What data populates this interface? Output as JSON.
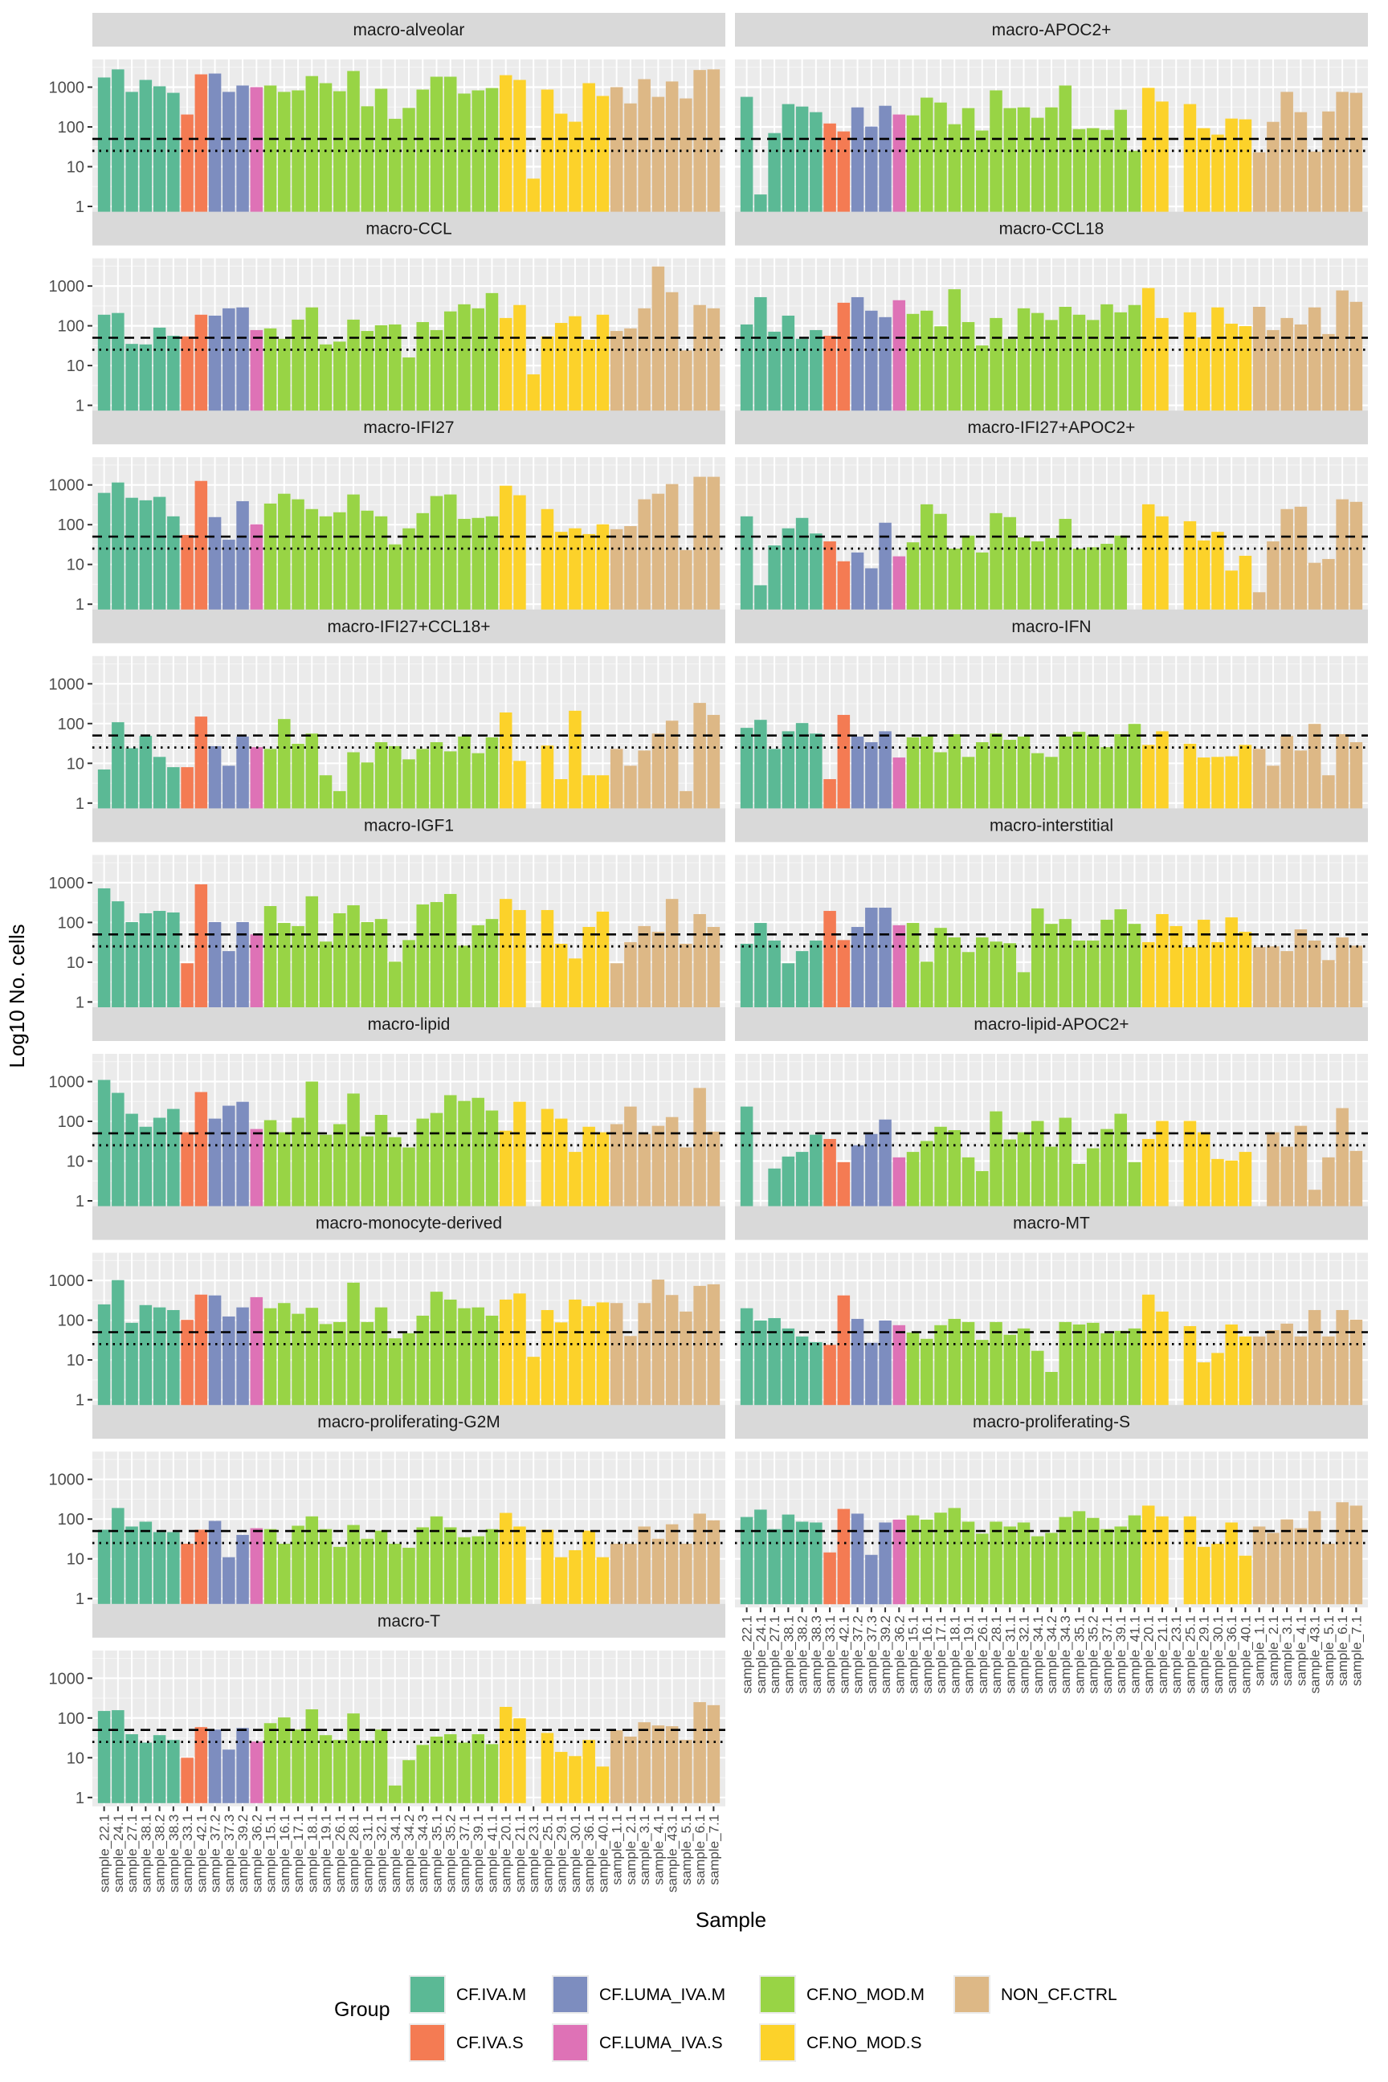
{
  "chart_data": {
    "type": "bar",
    "title": "",
    "xlabel": "Sample",
    "ylabel": "Log10 No. cells",
    "y_scale": "log10",
    "ylim": [
      1,
      3500
    ],
    "yticks": [
      1,
      10,
      100,
      1000
    ],
    "ytick_labels": [
      "1",
      "10",
      "100",
      "1000"
    ],
    "grid": true,
    "reference_lines": [
      {
        "value": 50,
        "style": "dashed"
      },
      {
        "value": 25,
        "style": "dotted"
      }
    ],
    "categories": [
      "sample_22.1",
      "sample_24.1",
      "sample_27.1",
      "sample_38.1",
      "sample_38.2",
      "sample_38.3",
      "sample_33.1",
      "sample_42.1",
      "sample_37.2",
      "sample_37.3",
      "sample_39.2",
      "sample_36.2",
      "sample_15.1",
      "sample_16.1",
      "sample_17.1",
      "sample_18.1",
      "sample_19.1",
      "sample_26.1",
      "sample_28.1",
      "sample_31.1",
      "sample_32.1",
      "sample_34.1",
      "sample_34.2",
      "sample_34.3",
      "sample_35.1",
      "sample_35.2",
      "sample_37.1",
      "sample_39.1",
      "sample_41.1",
      "sample_20.1",
      "sample_21.1",
      "sample_23.1",
      "sample_25.1",
      "sample_29.1",
      "sample_30.1",
      "sample_36.1",
      "sample_40.1",
      "sample_1.1",
      "sample_2.1",
      "sample_3.1",
      "sample_4.1",
      "sample_43.1",
      "sample_5.1",
      "sample_6.1",
      "sample_7.1"
    ],
    "sample_groups": [
      "CF.IVA.M",
      "CF.IVA.M",
      "CF.IVA.M",
      "CF.IVA.M",
      "CF.IVA.M",
      "CF.IVA.M",
      "CF.IVA.S",
      "CF.IVA.S",
      "CF.LUMA_IVA.M",
      "CF.LUMA_IVA.M",
      "CF.LUMA_IVA.M",
      "CF.LUMA_IVA.S",
      "CF.NO_MOD.M",
      "CF.NO_MOD.M",
      "CF.NO_MOD.M",
      "CF.NO_MOD.M",
      "CF.NO_MOD.M",
      "CF.NO_MOD.M",
      "CF.NO_MOD.M",
      "CF.NO_MOD.M",
      "CF.NO_MOD.M",
      "CF.NO_MOD.M",
      "CF.NO_MOD.M",
      "CF.NO_MOD.M",
      "CF.NO_MOD.M",
      "CF.NO_MOD.M",
      "CF.NO_MOD.M",
      "CF.NO_MOD.M",
      "CF.NO_MOD.M",
      "CF.NO_MOD.S",
      "CF.NO_MOD.S",
      "CF.NO_MOD.S",
      "CF.NO_MOD.S",
      "CF.NO_MOD.S",
      "CF.NO_MOD.S",
      "CF.NO_MOD.S",
      "CF.NO_MOD.S",
      "NON_CF.CTRL",
      "NON_CF.CTRL",
      "NON_CF.CTRL",
      "NON_CF.CTRL",
      "NON_CF.CTRL",
      "NON_CF.CTRL",
      "NON_CF.CTRL",
      "NON_CF.CTRL"
    ],
    "legend": {
      "title": "Group",
      "position": "bottom",
      "entries": [
        {
          "label": "CF.IVA.M",
          "color": "#5BB995"
        },
        {
          "label": "CF.IVA.S",
          "color": "#F47B53"
        },
        {
          "label": "CF.LUMA_IVA.M",
          "color": "#7D8DBF"
        },
        {
          "label": "CF.LUMA_IVA.S",
          "color": "#DE72B6"
        },
        {
          "label": "CF.NO_MOD.M",
          "color": "#98D445"
        },
        {
          "label": "CF.NO_MOD.S",
          "color": "#FCD22A"
        },
        {
          "label": "NON_CF.CTRL",
          "color": "#DDB886"
        }
      ]
    },
    "panels": [
      {
        "name": "macro-alveolar",
        "values": [
          1750,
          2800,
          760,
          1520,
          1050,
          720,
          205,
          2100,
          2200,
          760,
          1100,
          1000,
          1100,
          760,
          830,
          1900,
          1260,
          790,
          2550,
          330,
          910,
          160,
          300,
          870,
          1830,
          1830,
          690,
          830,
          950,
          2000,
          1520,
          5,
          870,
          215,
          135,
          1260,
          600,
          1000,
          390,
          1590,
          570,
          1390,
          520,
          2700,
          2800
        ]
      },
      {
        "name": "macro-APOC2+",
        "values": [
          570,
          2,
          70,
          375,
          325,
          235,
          122,
          77,
          310,
          102,
          340,
          205,
          195,
          545,
          410,
          117,
          297,
          81,
          830,
          297,
          310,
          170,
          310,
          1100,
          88,
          93,
          84,
          270,
          25,
          960,
          435,
          null,
          375,
          93,
          64,
          162,
          155,
          23,
          134,
          760,
          235,
          24,
          245,
          760,
          720
        ]
      },
      {
        "name": "macro-CCL",
        "values": [
          190,
          210,
          35,
          34,
          90,
          56,
          54,
          190,
          180,
          275,
          290,
          78,
          86,
          47,
          143,
          290,
          34,
          40,
          143,
          74,
          103,
          108,
          16,
          124,
          78,
          230,
          347,
          275,
          665,
          157,
          333,
          6,
          54,
          118,
          174,
          45,
          190,
          74,
          86,
          275,
          3100,
          700,
          24,
          333,
          275
        ]
      },
      {
        "name": "macro-CCL18",
        "values": [
          108,
          525,
          71,
          180,
          47,
          78,
          56,
          380,
          525,
          240,
          165,
          440,
          199,
          240,
          97,
          830,
          124,
          32,
          157,
          47,
          275,
          210,
          140,
          300,
          190,
          140,
          347,
          218,
          333,
          890,
          157,
          null,
          218,
          51,
          290,
          113,
          98,
          300,
          78,
          157,
          108,
          290,
          62,
          775,
          400
        ]
      },
      {
        "name": "macro-IFI27",
        "values": [
          630,
          1150,
          475,
          410,
          500,
          162,
          55,
          1260,
          155,
          42,
          390,
          102,
          340,
          600,
          435,
          247,
          162,
          205,
          575,
          225,
          162,
          32,
          81,
          195,
          525,
          575,
          140,
          148,
          162,
          955,
          550,
          null,
          247,
          66,
          81,
          58,
          102,
          77,
          92,
          435,
          600,
          1050,
          23,
          1600,
          1600
        ]
      },
      {
        "name": "macro-IFI27+APOC2+",
        "values": [
          162,
          3,
          30,
          81,
          148,
          60,
          38,
          12,
          20,
          8,
          112,
          16,
          36,
          325,
          187,
          25,
          53,
          20,
          195,
          155,
          48,
          38,
          46,
          140,
          25,
          27,
          33,
          53,
          null,
          325,
          162,
          null,
          122,
          40,
          66,
          7,
          16.5,
          2,
          38,
          247,
          283,
          11,
          13.7,
          435,
          375
        ]
      },
      {
        "name": "macro-IFI27+CCL18+",
        "values": [
          7,
          108,
          24,
          49,
          14.5,
          8,
          8,
          150,
          27,
          8.7,
          47,
          25.5,
          23,
          130,
          31,
          56,
          5,
          2,
          19,
          10.5,
          34,
          27,
          12.6,
          23,
          34,
          20,
          47,
          18,
          45,
          190,
          11.5,
          null,
          28,
          4,
          210,
          5,
          5,
          23,
          8.7,
          21,
          56,
          118,
          2,
          330,
          165
        ]
      },
      {
        "name": "macro-IFN",
        "values": [
          78,
          124,
          23,
          64,
          103,
          56,
          4,
          165,
          47,
          34,
          64,
          14,
          45,
          47,
          19,
          54,
          14.5,
          34,
          56,
          39,
          47,
          18,
          14.5,
          47,
          62,
          51,
          25.5,
          54,
          98,
          29,
          64,
          null,
          31,
          14,
          14.5,
          15,
          29,
          23,
          8.7,
          49,
          21,
          98,
          5,
          54,
          34
        ]
      },
      {
        "name": "macro-IGF1",
        "values": [
          720,
          340,
          102,
          170,
          195,
          178,
          9.4,
          910,
          102,
          19,
          102,
          50,
          258,
          97,
          81,
          455,
          33,
          170,
          270,
          102,
          122,
          10.3,
          36,
          283,
          325,
          520,
          26,
          85,
          122,
          390,
          205,
          null,
          205,
          29,
          12.4,
          77,
          187,
          9.4,
          32,
          81,
          58,
          390,
          29,
          162,
          77
        ]
      },
      {
        "name": "macro-interstitial",
        "values": [
          29,
          97,
          35,
          9.4,
          19,
          35,
          195,
          36,
          77,
          235,
          235,
          85,
          97,
          10.3,
          73,
          42,
          18,
          42,
          33,
          30,
          5.6,
          225,
          92,
          122,
          35,
          35,
          117,
          214,
          92,
          32,
          162,
          81,
          24,
          117,
          32,
          134,
          58,
          24,
          25,
          19,
          67,
          35,
          11.3,
          42,
          26
        ]
      },
      {
        "name": "macro-lipid",
        "values": [
          1100,
          520,
          155,
          73,
          123,
          205,
          53,
          545,
          117,
          247,
          310,
          64,
          107,
          53,
          123,
          1000,
          46,
          85,
          500,
          42,
          145,
          40,
          22,
          117,
          162,
          455,
          325,
          390,
          187,
          58,
          310,
          null,
          205,
          117,
          17,
          73,
          53,
          85,
          235,
          48,
          77,
          128,
          22,
          690,
          55
        ]
      },
      {
        "name": "macro-lipid-APOC2+",
        "values": [
          235,
          null,
          6.5,
          13,
          17,
          46,
          36,
          9.4,
          25,
          48,
          111,
          12.4,
          17,
          32,
          73,
          60,
          12.4,
          5.6,
          178,
          35,
          53,
          102,
          23,
          123,
          8.5,
          21,
          64,
          155,
          9.4,
          36,
          102,
          null,
          102,
          53,
          11.3,
          10.3,
          17,
          null,
          53,
          23,
          77,
          1.9,
          12.4,
          215,
          18
        ]
      },
      {
        "name": "macro-monocyte-derived",
        "values": [
          250,
          1020,
          86,
          240,
          210,
          180,
          102,
          440,
          420,
          124,
          210,
          380,
          200,
          270,
          145,
          205,
          80,
          90,
          880,
          90,
          210,
          35,
          47,
          130,
          520,
          330,
          200,
          210,
          130,
          330,
          470,
          12,
          180,
          88,
          330,
          225,
          280,
          270,
          40,
          270,
          1050,
          430,
          165,
          730,
          800
        ]
      },
      {
        "name": "macro-MT",
        "values": [
          200,
          98,
          113,
          62,
          39,
          28,
          24,
          420,
          108,
          27,
          98,
          75,
          49,
          34,
          75,
          108,
          90,
          32,
          90,
          43,
          62,
          17,
          5,
          90,
          78,
          86,
          47,
          54,
          62,
          440,
          165,
          null,
          71,
          8.7,
          15,
          78,
          39,
          39,
          56,
          82,
          39,
          180,
          39,
          180,
          103
        ]
      },
      {
        "name": "macro-proliferating-G2M",
        "values": [
          54,
          190,
          65,
          86,
          47,
          47,
          24,
          54,
          90,
          11,
          40,
          59,
          56,
          24,
          68,
          117,
          56,
          20,
          71,
          32,
          51,
          24,
          19,
          62,
          117,
          62,
          35,
          37,
          56,
          143,
          65,
          null,
          54,
          11,
          16.5,
          51,
          11,
          24,
          24,
          65,
          32,
          74,
          24,
          137,
          93
        ]
      },
      {
        "name": "macro-proliferating-S",
        "values": [
          113,
          173,
          56,
          130,
          86,
          82,
          14.5,
          180,
          137,
          12.6,
          82,
          97,
          124,
          97,
          145,
          190,
          86,
          43,
          86,
          65,
          82,
          37,
          45,
          113,
          158,
          107,
          56,
          65,
          124,
          218,
          117,
          null,
          117,
          20,
          24,
          82,
          12,
          65,
          45,
          98,
          59,
          158,
          24,
          265,
          218
        ]
      },
      {
        "name": "macro-T",
        "values": [
          150,
          157,
          39,
          24,
          37,
          28,
          10,
          59,
          51,
          16,
          56,
          25.5,
          74,
          103,
          51,
          165,
          37,
          28,
          130,
          27,
          51,
          2,
          8.7,
          21,
          34,
          39,
          24,
          39,
          22,
          190,
          98,
          null,
          42,
          14,
          11,
          28,
          6,
          49,
          34,
          78,
          65,
          62,
          28,
          250,
          210
        ]
      }
    ]
  }
}
